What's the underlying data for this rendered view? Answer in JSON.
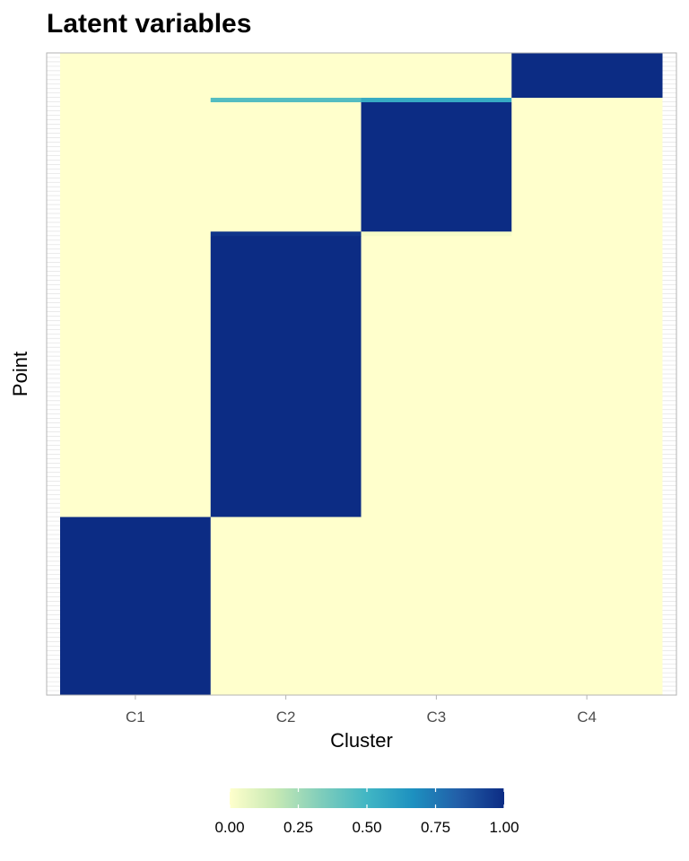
{
  "chart_data": {
    "type": "heatmap",
    "title": "Latent variables",
    "xlabel": "Cluster",
    "ylabel": "Point",
    "categories": [
      "C1",
      "C2",
      "C3",
      "C4"
    ],
    "value_range": [
      0,
      1
    ],
    "colorscale": [
      "#ffffcc",
      "#c7e9b4",
      "#7fcdbb",
      "#41b6c4",
      "#1d91c0",
      "#225ea8",
      "#0c2c84"
    ],
    "legend": {
      "position": "bottom",
      "ticks": [
        "0.00",
        "0.25",
        "0.50",
        "0.75",
        "1.00"
      ],
      "tick_values": [
        0,
        0.25,
        0.5,
        0.75,
        1
      ]
    },
    "point_blocks": [
      {
        "points": 40,
        "values": [
          1,
          0,
          0,
          0
        ]
      },
      {
        "points": 63,
        "values": [
          0,
          1,
          0,
          0
        ]
      },
      {
        "points": 1,
        "values": [
          0,
          0.97,
          0.03,
          0
        ]
      },
      {
        "points": 29,
        "values": [
          0,
          0,
          1,
          0
        ]
      },
      {
        "points": 1,
        "values": [
          0,
          0.45,
          0.55,
          0
        ]
      },
      {
        "points": 10,
        "values": [
          0,
          0,
          0,
          1
        ]
      }
    ]
  }
}
